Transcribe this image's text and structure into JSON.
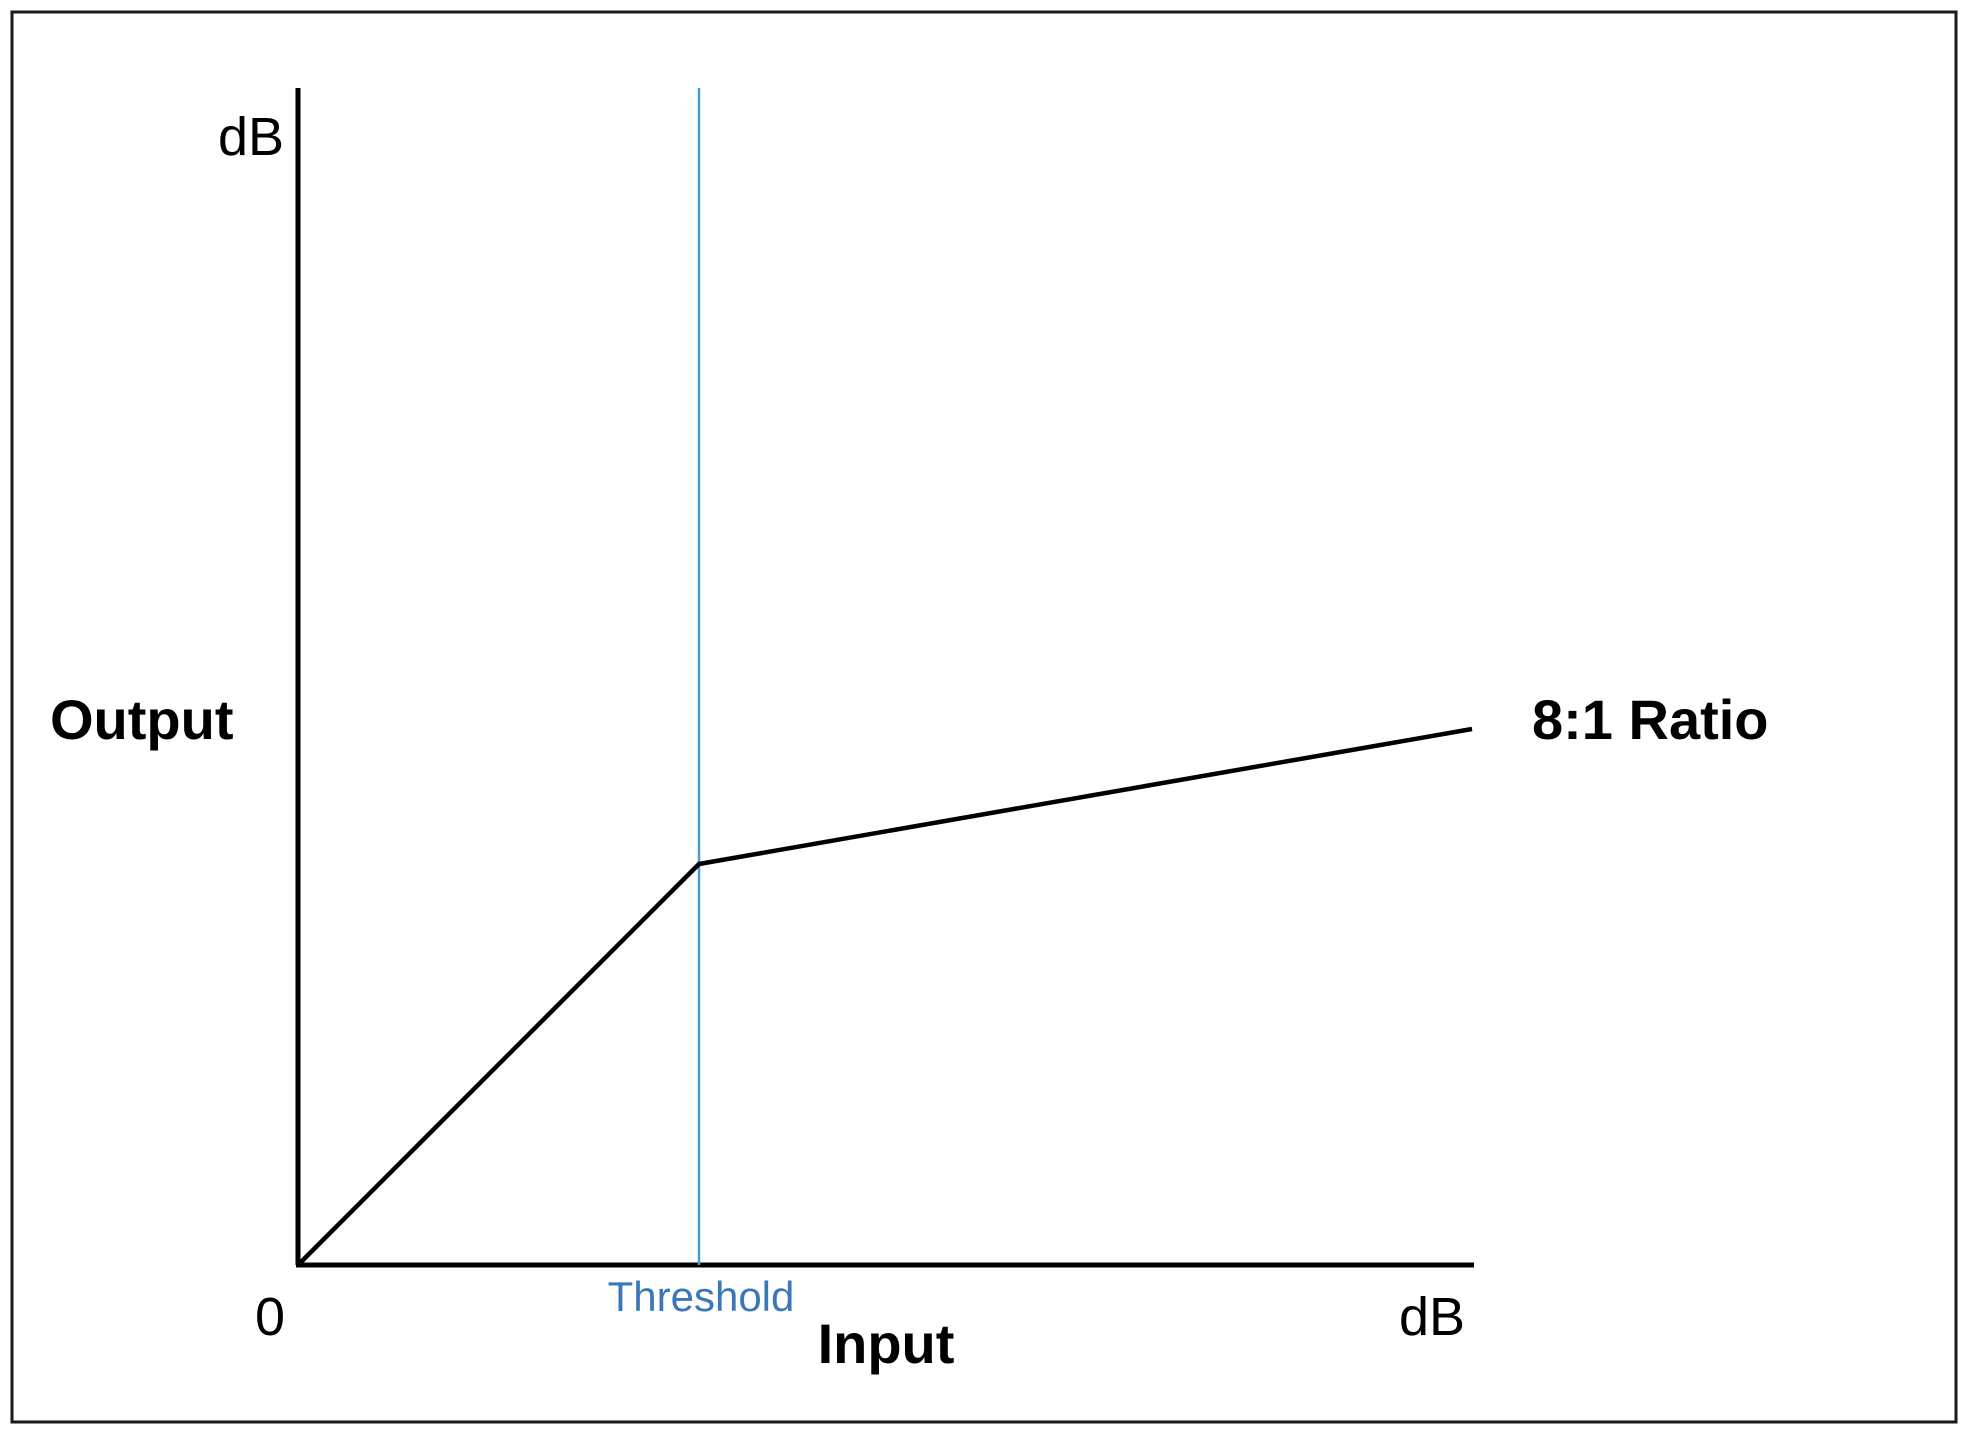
{
  "diagram": {
    "y_axis_unit": "dB",
    "x_axis_unit": "dB",
    "origin_label": "0",
    "y_axis_title": "Output",
    "x_axis_title": "Input",
    "threshold_label": "Threshold",
    "curve_label": "8:1 Ratio",
    "colors": {
      "axis": "#000000",
      "curve": "#000000",
      "threshold_line": "#4a9ad8",
      "threshold_text": "#3a78b8",
      "border": "#1a1a1a"
    }
  }
}
